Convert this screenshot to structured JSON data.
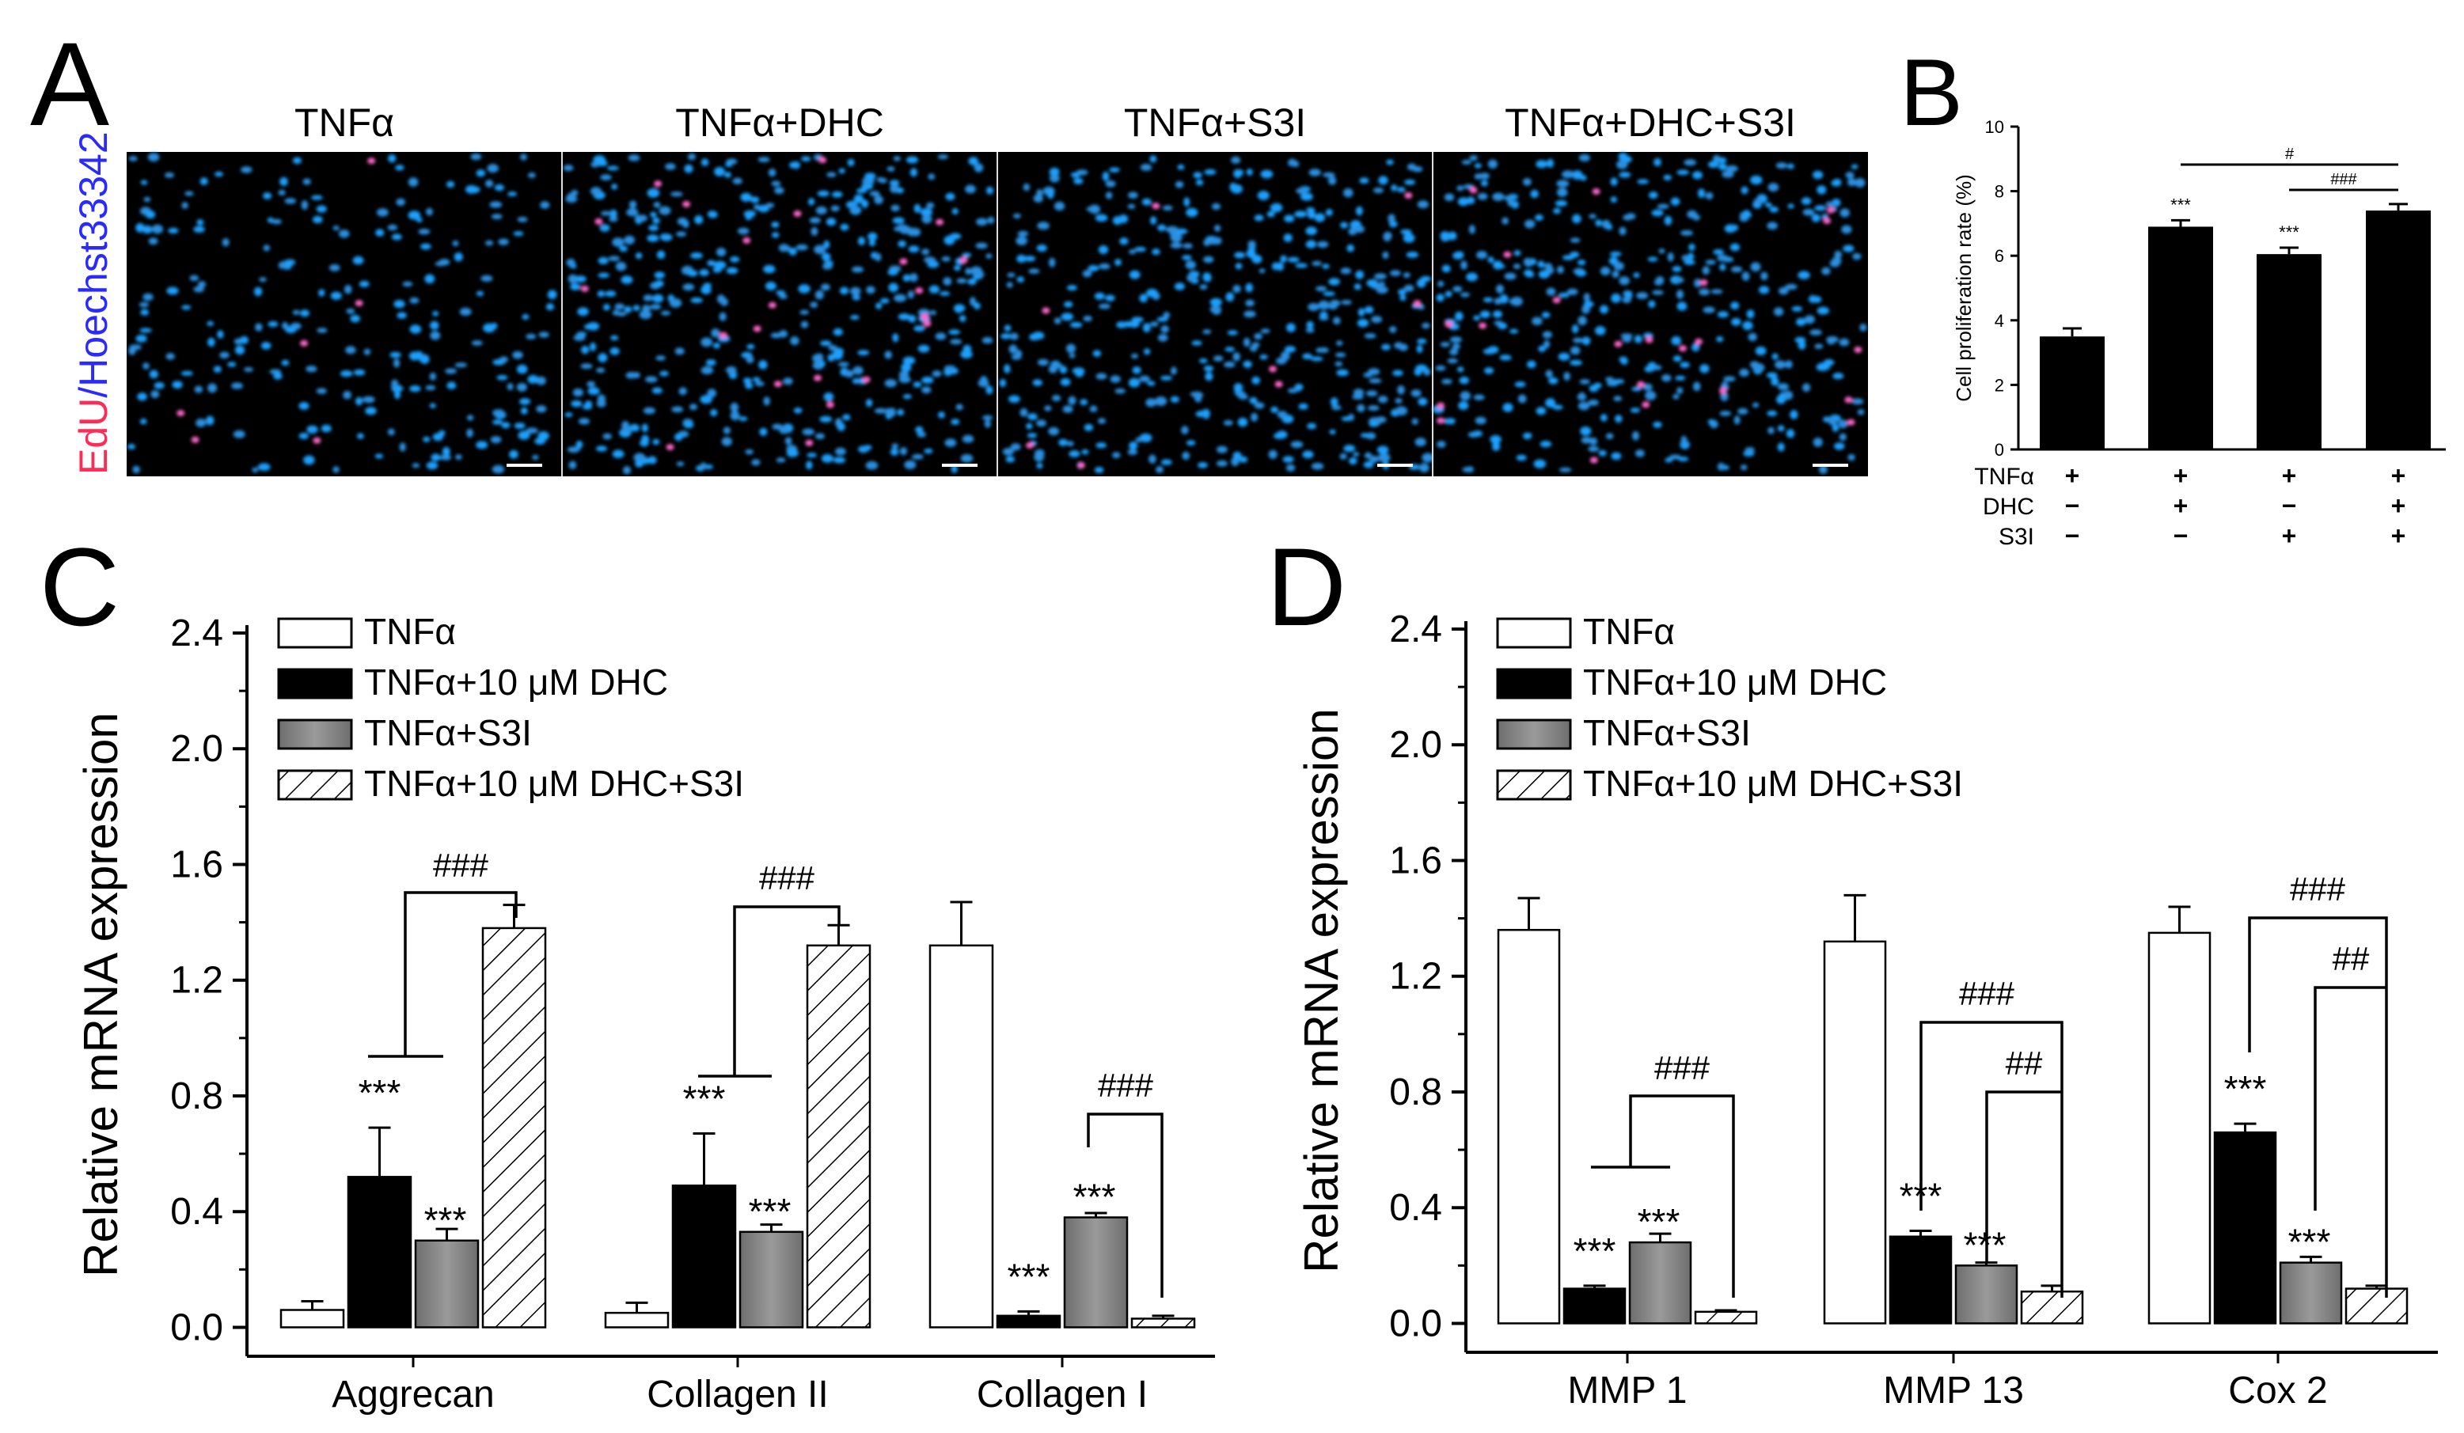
{
  "panel_a": {
    "letter": "A",
    "ylabel_red": "EdU",
    "ylabel_sep": "/",
    "ylabel_blue": "Hoechst33342",
    "labels": [
      "TNFα",
      "TNFα+DHC",
      "TNFα+S3I",
      "TNFα+DHC+S3I"
    ]
  },
  "chart_data": [
    {
      "id": "B",
      "letter": "B",
      "type": "bar",
      "ylabel": "Cell proliferation rate (%)",
      "ylim": [
        0,
        10
      ],
      "yticks": [
        0,
        2,
        4,
        6,
        8,
        10
      ],
      "values": [
        3.5,
        6.9,
        6.05,
        7.4
      ],
      "errors": [
        0.25,
        0.2,
        0.2,
        0.2
      ],
      "stars": [
        "",
        "***",
        "***",
        ""
      ],
      "conditions": [
        {
          "name": "TNFα",
          "signs": [
            "+",
            "+",
            "+",
            "+"
          ]
        },
        {
          "name": "DHC",
          "signs": [
            "−",
            "+",
            "−",
            "+"
          ]
        },
        {
          "name": "S3I",
          "signs": [
            "−",
            "−",
            "+",
            "+"
          ]
        }
      ],
      "brackets": [
        {
          "from": 1,
          "to": 3,
          "label": "#"
        },
        {
          "from": 2,
          "to": 3,
          "label": "###"
        }
      ]
    },
    {
      "id": "C",
      "letter": "C",
      "type": "bar",
      "ylabel": "Relative mRNA expression",
      "ylim": [
        -0.1,
        2.4
      ],
      "yticks": [
        "0.0",
        "0.4",
        "0.8",
        "1.2",
        "1.6",
        "2.0",
        "2.4"
      ],
      "categories": [
        "Aggrecan",
        "Collagen II",
        "Collagen I"
      ],
      "legend": [
        "TNFα",
        "TNFα+10 μM DHC",
        "TNFα+S3I",
        "TNFα+10 μM DHC+S3I"
      ],
      "series": [
        {
          "name": "TNFα",
          "values": [
            0.06,
            0.05,
            1.32
          ],
          "errors": [
            0.03,
            0.035,
            0.15
          ],
          "stars": [
            "",
            "",
            ""
          ]
        },
        {
          "name": "TNFα+10 μM DHC",
          "values": [
            0.52,
            0.49,
            0.04
          ],
          "errors": [
            0.17,
            0.18,
            0.015
          ],
          "stars": [
            "***",
            "***",
            "***"
          ]
        },
        {
          "name": "TNFα+S3I",
          "values": [
            0.3,
            0.33,
            0.38
          ],
          "errors": [
            0.04,
            0.025,
            0.015
          ],
          "stars": [
            "***",
            "***",
            "***"
          ]
        },
        {
          "name": "TNFα+10 μM DHC+S3I",
          "values": [
            1.38,
            1.32,
            0.03
          ],
          "errors": [
            0.08,
            0.07,
            0.01
          ],
          "stars": [
            "",
            "",
            ""
          ]
        }
      ],
      "brackets": [
        {
          "label": "###"
        },
        {
          "label": "###"
        },
        {
          "label": "###"
        }
      ]
    },
    {
      "id": "D",
      "letter": "D",
      "type": "bar",
      "ylabel": "Relative mRNA expression",
      "ylim": [
        -0.1,
        2.4
      ],
      "yticks": [
        "0.0",
        "0.4",
        "0.8",
        "1.2",
        "1.6",
        "2.0",
        "2.4"
      ],
      "categories": [
        "MMP 1",
        "MMP 13",
        "Cox 2"
      ],
      "legend": [
        "TNFα",
        "TNFα+10 μM DHC",
        "TNFα+S3I",
        "TNFα+10 μM DHC+S3I"
      ],
      "series": [
        {
          "name": "TNFα",
          "values": [
            1.36,
            1.32,
            1.35
          ],
          "errors": [
            0.11,
            0.16,
            0.09
          ],
          "stars": [
            "",
            "",
            ""
          ]
        },
        {
          "name": "TNFα+10 μM DHC",
          "values": [
            0.12,
            0.3,
            0.66
          ],
          "errors": [
            0.01,
            0.02,
            0.03
          ],
          "stars": [
            "***",
            "***",
            "***"
          ]
        },
        {
          "name": "TNFα+S3I",
          "values": [
            0.28,
            0.2,
            0.21
          ],
          "errors": [
            0.03,
            0.01,
            0.02
          ],
          "stars": [
            "***",
            "***",
            "***"
          ]
        },
        {
          "name": "TNFα+10 μM DHC+S3I",
          "values": [
            0.04,
            0.11,
            0.12
          ],
          "errors": [
            0.005,
            0.02,
            0.01
          ],
          "stars": [
            "",
            "",
            ""
          ]
        }
      ],
      "brackets": [
        {
          "label": "###"
        },
        {
          "label": "###"
        },
        {
          "label": "##"
        },
        {
          "label": "###"
        },
        {
          "label": "##"
        }
      ]
    }
  ]
}
